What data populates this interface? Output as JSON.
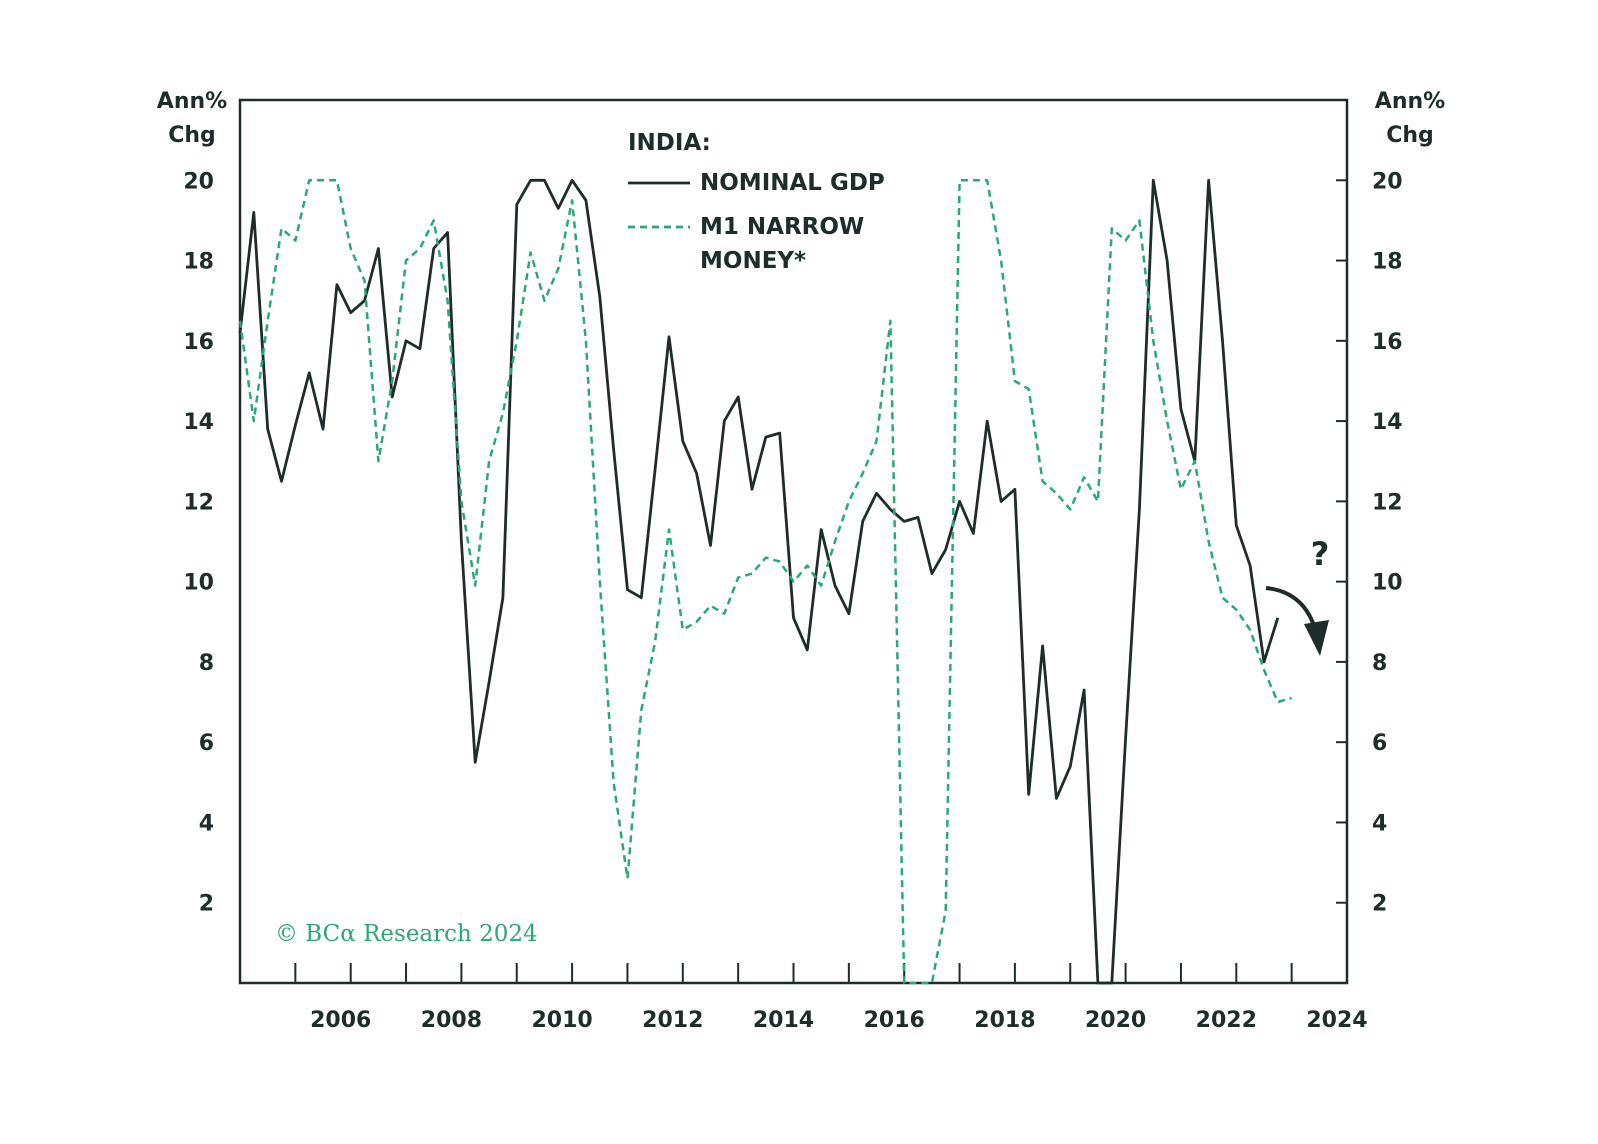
{
  "chart_data": {
    "type": "line",
    "ylabel": [
      "Ann%",
      "Chg"
    ],
    "y2label": [
      "Ann%",
      "Chg"
    ],
    "legend_title": "INDIA:",
    "annotation": "?",
    "source": "© BCα Research 2024",
    "x": [
      2004,
      2004.25,
      2004.5,
      2004.75,
      2005,
      2005.25,
      2005.5,
      2005.75,
      2006,
      2006.25,
      2006.5,
      2006.75,
      2007,
      2007.25,
      2007.5,
      2007.75,
      2008,
      2008.25,
      2008.5,
      2008.75,
      2009,
      2009.25,
      2009.5,
      2009.75,
      2010,
      2010.25,
      2010.5,
      2010.75,
      2011,
      2011.25,
      2011.5,
      2011.75,
      2012,
      2012.25,
      2012.5,
      2012.75,
      2013,
      2013.25,
      2013.5,
      2013.75,
      2014,
      2014.25,
      2014.5,
      2014.75,
      2015,
      2015.25,
      2015.5,
      2015.75,
      2016,
      2016.25,
      2016.5,
      2016.75,
      2017,
      2017.25,
      2017.5,
      2017.75,
      2018,
      2018.25,
      2018.5,
      2018.75,
      2019,
      2019.25,
      2019.5,
      2019.75,
      2020,
      2020.25,
      2020.5,
      2020.75,
      2021,
      2021.25,
      2021.5,
      2021.75,
      2022,
      2022.25,
      2022.5,
      2022.75,
      2023
    ],
    "series": [
      {
        "name": "NOMINAL GDP",
        "color": "#1e2d2b",
        "dashed": false,
        "values": [
          16.2,
          19.2,
          13.8,
          12.5,
          13.9,
          15.2,
          13.8,
          17.4,
          16.7,
          17.0,
          18.3,
          14.6,
          16.0,
          15.8,
          18.3,
          18.7,
          11.0,
          5.5,
          7.5,
          9.6,
          19.4,
          20,
          20,
          19.3,
          20,
          19.5,
          17.1,
          13.3,
          9.8,
          9.6,
          12.8,
          16.1,
          13.5,
          12.7,
          10.9,
          14.0,
          14.6,
          12.3,
          13.6,
          13.7,
          9.1,
          8.3,
          11.3,
          9.9,
          9.2,
          11.5,
          12.2,
          11.8,
          11.5,
          11.6,
          10.2,
          10.8,
          12.0,
          11.2,
          14.0,
          12.0,
          12.3,
          4.7,
          8.4,
          4.6,
          5.4,
          7.3,
          0,
          0,
          6.1,
          11.8,
          20,
          18,
          14.3,
          13.0,
          20,
          16,
          11.4,
          10.4,
          8.0,
          9.1,
          null
        ]
      },
      {
        "name": "M1 NARROW MONEY*",
        "color": "#2aa876",
        "dashed": true,
        "values": [
          16.5,
          14.0,
          16.5,
          18.8,
          18.5,
          20,
          20,
          20,
          18.3,
          17.5,
          13.0,
          15.0,
          18.0,
          18.3,
          19.0,
          17.0,
          12.0,
          9.9,
          13.0,
          14.2,
          16.0,
          18.2,
          17.0,
          17.8,
          19.5,
          16.0,
          10.0,
          5.0,
          2.6,
          6.8,
          8.5,
          11.3,
          8.8,
          9.0,
          9.4,
          9.2,
          10.1,
          10.2,
          10.6,
          10.5,
          10.0,
          10.4,
          9.9,
          11.0,
          12.0,
          12.7,
          13.5,
          16.5,
          0,
          0,
          0,
          1.8,
          20,
          20,
          20,
          18.0,
          15.0,
          14.8,
          12.5,
          12.2,
          11.8,
          12.6,
          12.0,
          18.8,
          18.5,
          19.0,
          16.0,
          14.0,
          12.3,
          13.0,
          11.0,
          9.6,
          9.3,
          8.8,
          7.8,
          7.0,
          7.1
        ]
      }
    ],
    "xlim": [
      2004,
      2024
    ],
    "xticks": [
      2006,
      2008,
      2010,
      2012,
      2014,
      2016,
      2018,
      2020,
      2022,
      2024
    ],
    "xminorticks": [
      2005,
      2006,
      2007,
      2008,
      2009,
      2010,
      2011,
      2012,
      2013,
      2014,
      2015,
      2016,
      2017,
      2018,
      2019,
      2020,
      2021,
      2022,
      2023
    ],
    "ylim": [
      0,
      22
    ],
    "yticks": [
      2,
      4,
      6,
      8,
      10,
      12,
      14,
      16,
      18,
      20
    ],
    "y2lim": [
      0,
      22
    ],
    "y2ticks": [
      2,
      4,
      6,
      8,
      10,
      12,
      14,
      16,
      18,
      20
    ],
    "grid": false
  }
}
